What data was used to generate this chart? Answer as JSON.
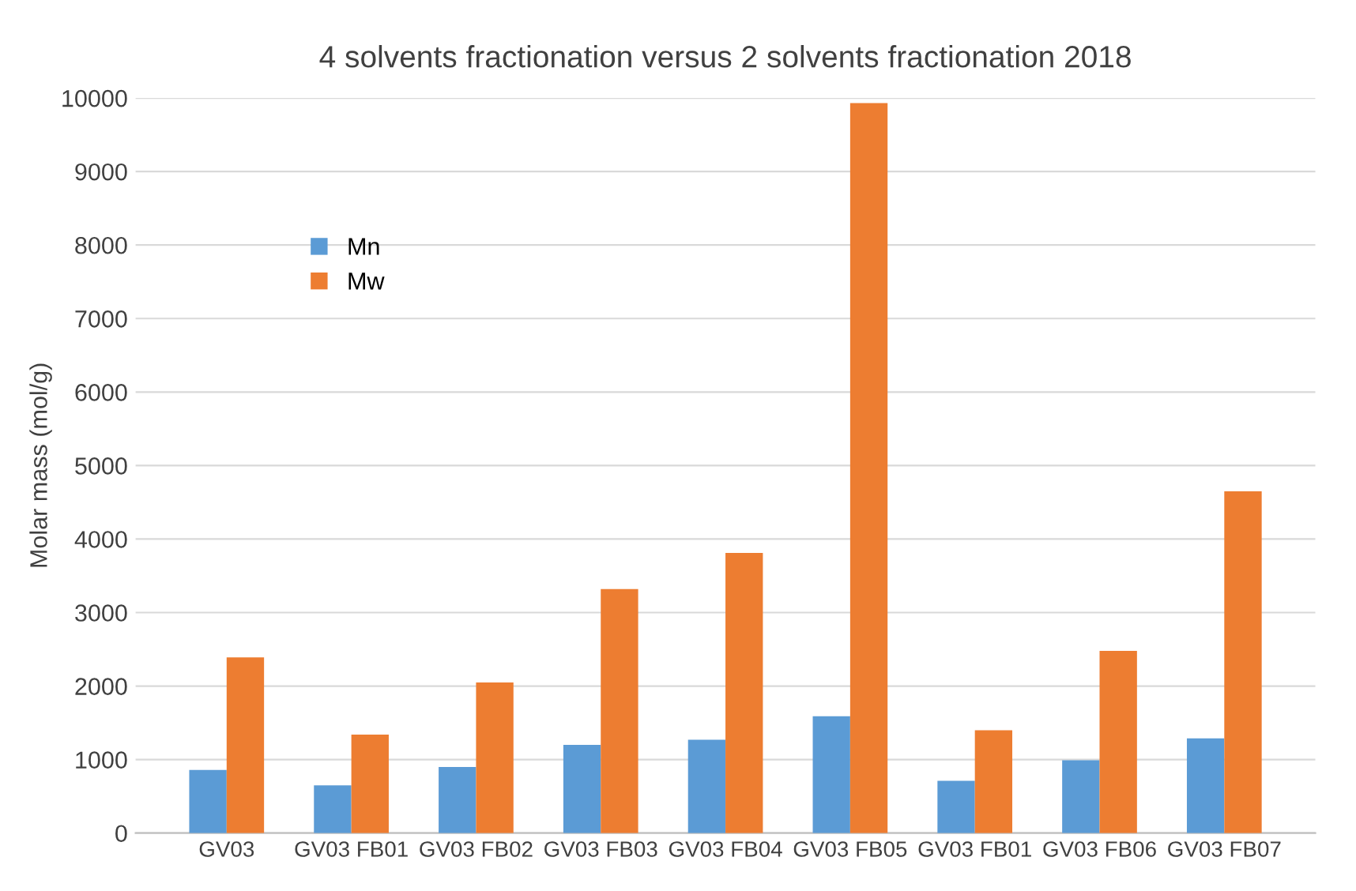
{
  "chart_data": {
    "type": "bar",
    "title": "4 solvents fractionation versus 2 solvents fractionation 2018",
    "ylabel": "Molar mass (mol/g)",
    "categories": [
      "GV03",
      "GV03 FB01",
      "GV03 FB02",
      "GV03 FB03",
      "GV03 FB04",
      "GV03 FB05",
      "GV03 FB01",
      "GV03 FB06",
      "GV03 FB07"
    ],
    "series": [
      {
        "name": "Mn",
        "color": "#5b9bd5",
        "values": [
          860,
          650,
          900,
          1200,
          1270,
          1590,
          710,
          990,
          1290
        ]
      },
      {
        "name": "Mw",
        "color": "#ed7d31",
        "values": [
          2390,
          1340,
          2050,
          3320,
          3810,
          9930,
          1400,
          2480,
          4650
        ]
      }
    ],
    "ylim": [
      0,
      10000
    ],
    "yticks": [
      0,
      1000,
      2000,
      3000,
      4000,
      5000,
      6000,
      7000,
      8000,
      9000,
      10000
    ],
    "grid": "y",
    "legend": "top left"
  }
}
